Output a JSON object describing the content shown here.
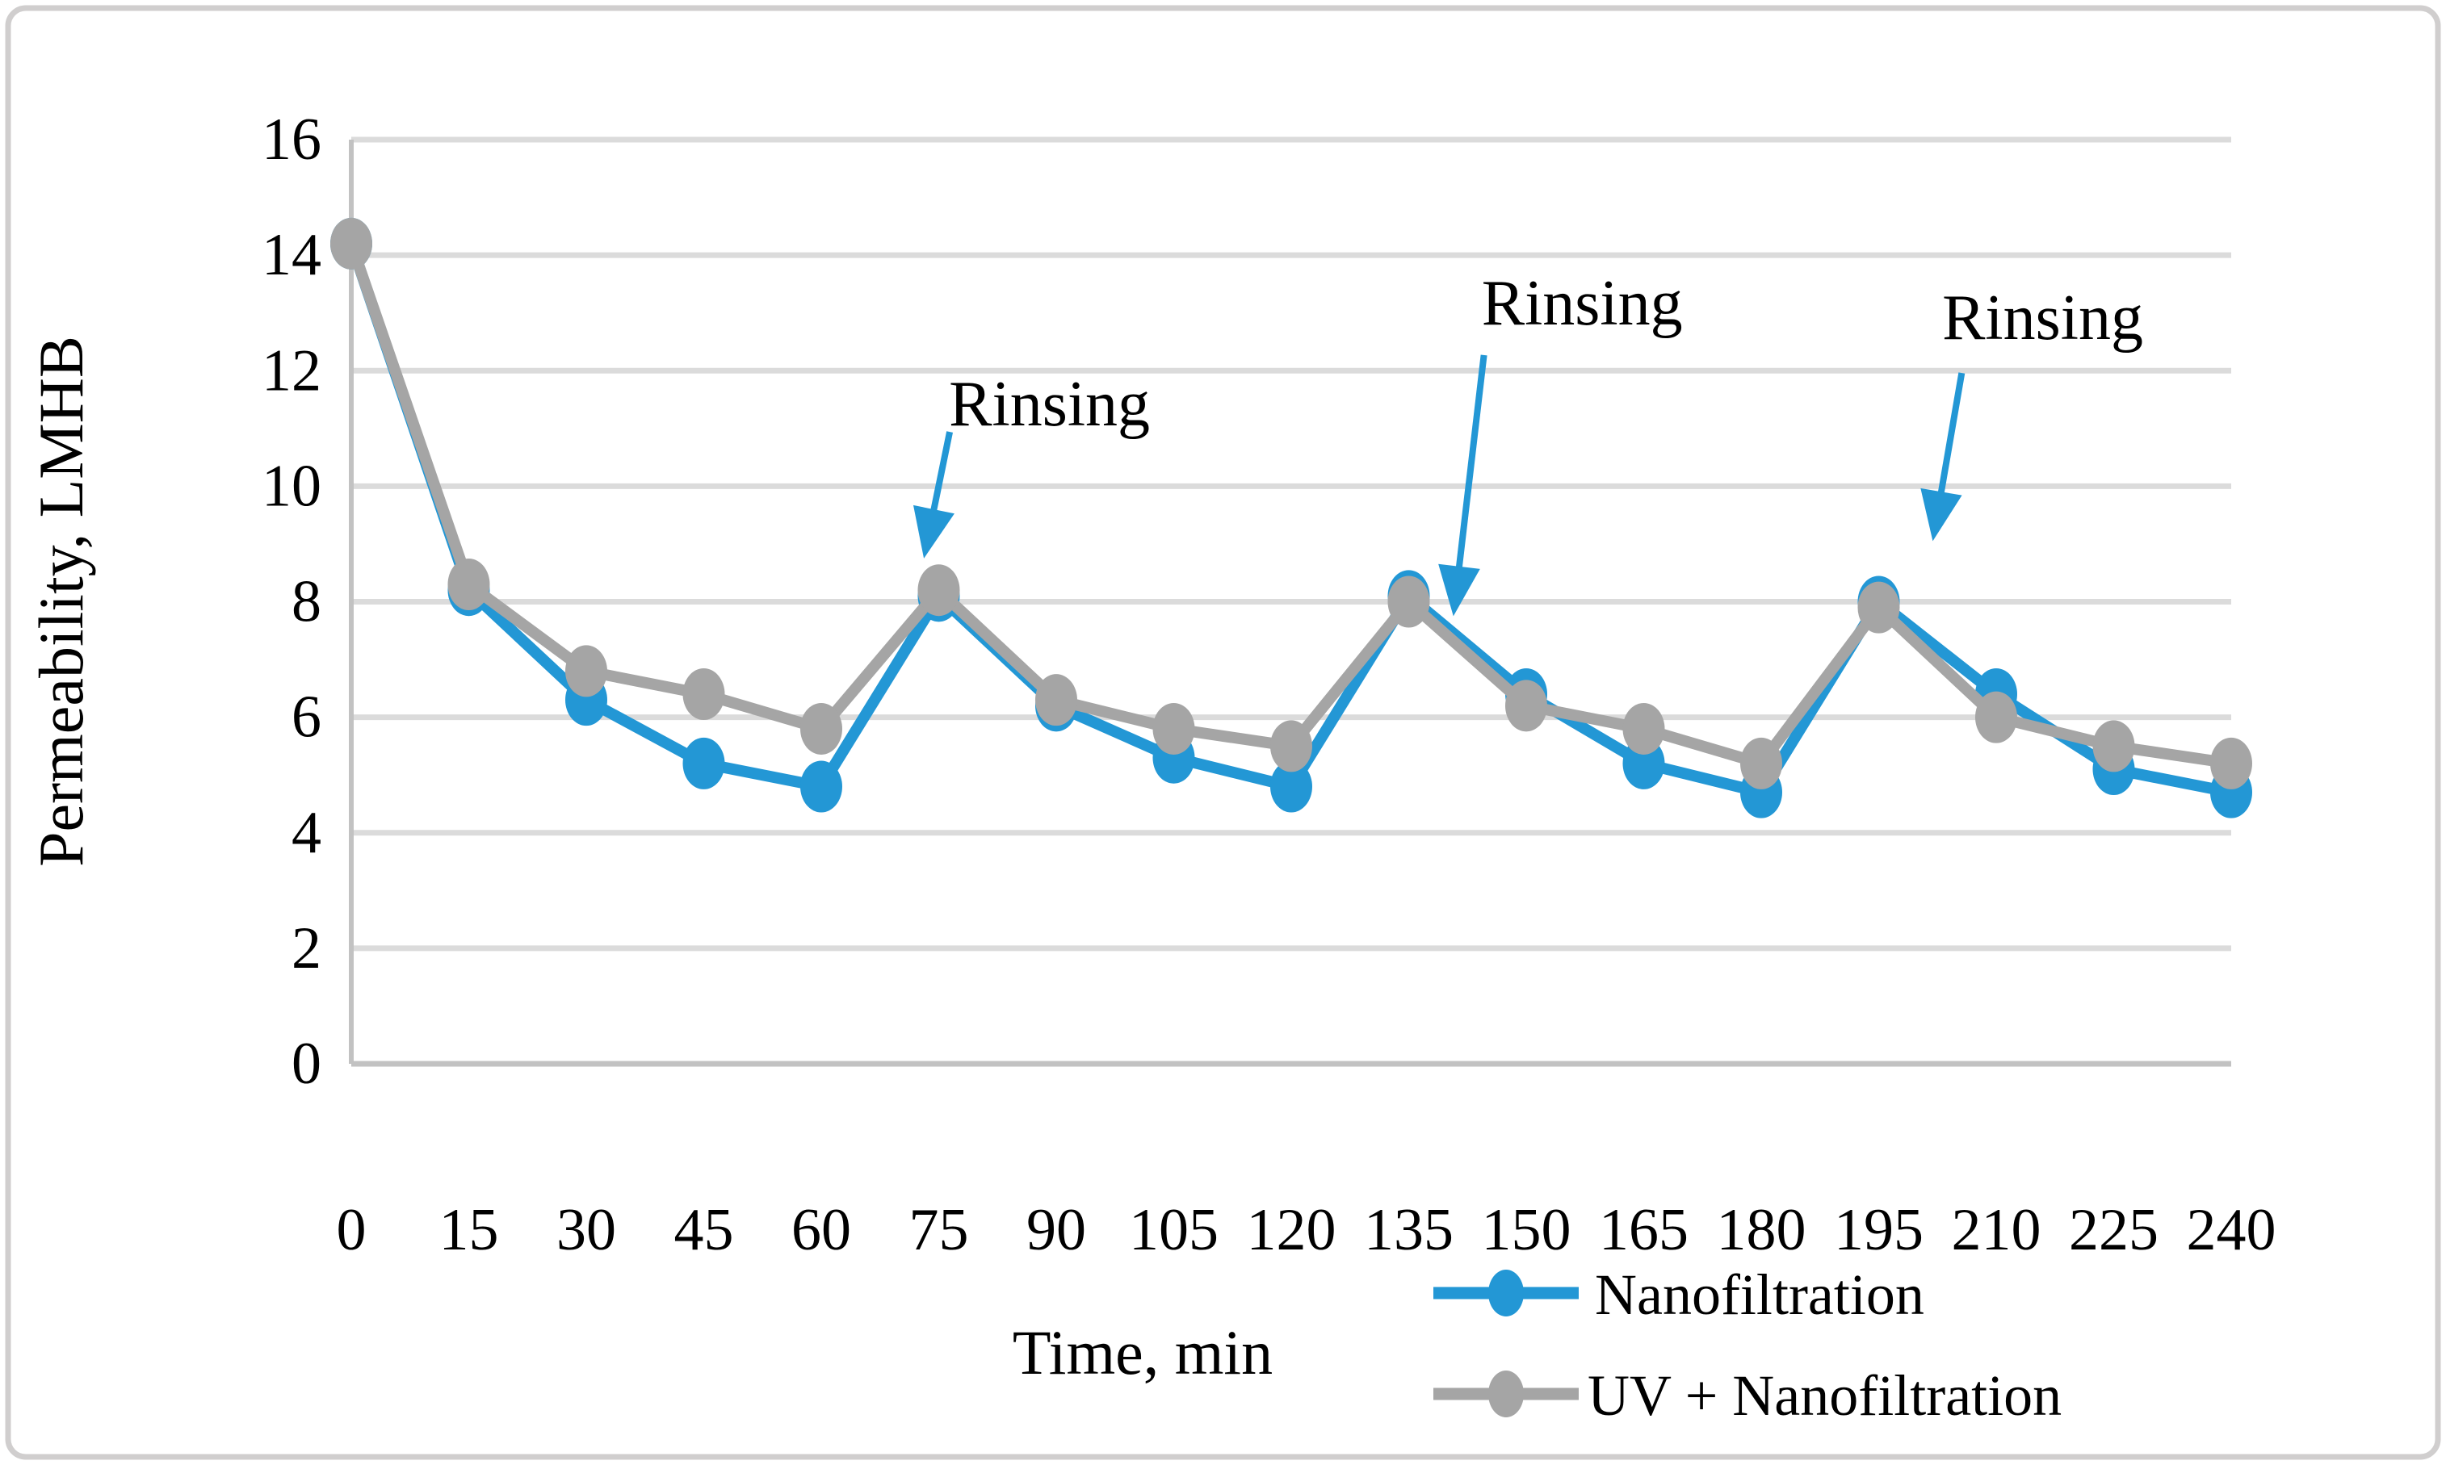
{
  "chart_data": {
    "type": "line",
    "x": [
      0,
      15,
      30,
      45,
      60,
      75,
      90,
      105,
      120,
      135,
      150,
      165,
      180,
      195,
      210,
      225,
      240
    ],
    "series": [
      {
        "name": "Nanofiltration",
        "color": "#2397D5",
        "values": [
          14.2,
          8.2,
          6.3,
          5.2,
          4.8,
          8.1,
          6.2,
          5.3,
          4.8,
          8.1,
          6.4,
          5.2,
          4.7,
          8.0,
          6.4,
          5.1,
          4.7
        ]
      },
      {
        "name": "UV + Nanofiltration",
        "color": "#A5A5A5",
        "values": [
          14.2,
          8.3,
          6.8,
          6.4,
          5.8,
          8.2,
          6.3,
          5.8,
          5.5,
          8.0,
          6.2,
          5.8,
          5.2,
          7.9,
          6.0,
          5.5,
          5.2
        ]
      }
    ],
    "xlabel": "Time, min",
    "ylabel": "Permeability, LMHB",
    "ylim": [
      0,
      16
    ],
    "ytick_step": 2,
    "xticks": [
      0,
      15,
      30,
      45,
      60,
      75,
      90,
      105,
      120,
      135,
      150,
      165,
      180,
      195,
      210,
      225,
      240
    ],
    "grid": "horizontal",
    "legend_position": "bottom-right",
    "annotations": [
      {
        "text": "Rinsing",
        "text_t": 76.3,
        "text_v": 11.05,
        "arrow": {
          "t1": 76.4,
          "v1": 10.94,
          "t2": 73.1,
          "v2": 8.75
        }
      },
      {
        "text": "Rinsing",
        "text_t": 144.3,
        "text_v": 12.8,
        "arrow": {
          "t1": 144.6,
          "v1": 12.27,
          "t2": 140.7,
          "v2": 7.75
        }
      },
      {
        "text": "Rinsing",
        "text_t": 203.1,
        "text_v": 12.55,
        "arrow": {
          "t1": 205.6,
          "v1": 11.96,
          "t2": 201.9,
          "v2": 9.05
        }
      }
    ],
    "colors": {
      "grid": "#DBDBDB",
      "axis": "#C2C2C2",
      "border": "#D0CECE",
      "text": "#000000",
      "arrow": "#2397D5",
      "background": "#FFFFFF"
    }
  }
}
